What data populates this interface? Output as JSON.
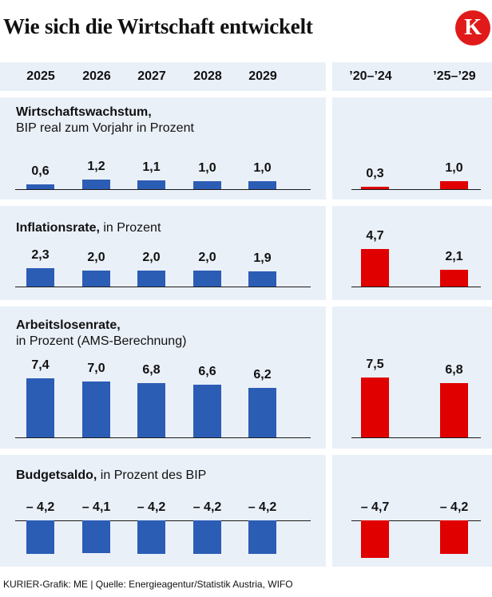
{
  "header": {
    "title": "Wie sich die Wirtschaft entwickelt",
    "logo_letter": "K"
  },
  "colors": {
    "blue": "#2c5db5",
    "red": "#e00000",
    "panel": "#eaf0f8"
  },
  "chart_data": {
    "type": "bar",
    "left_columns": [
      "2025",
      "2026",
      "2027",
      "2028",
      "2029"
    ],
    "right_columns": [
      "’20–’24",
      "’25–’29"
    ],
    "sections": [
      {
        "title_bold": "Wirtschaftswachstum,",
        "title_rest": "BIP real zum Vorjahr in Prozent",
        "left_values": [
          0.6,
          1.2,
          1.1,
          1.0,
          1.0
        ],
        "left_labels": [
          "0,6",
          "1,2",
          "1,1",
          "1,0",
          "1,0"
        ],
        "right_values": [
          0.3,
          1.0
        ],
        "right_labels": [
          "0,3",
          "1,0"
        ]
      },
      {
        "title_bold": "Inflationsrate,",
        "title_rest": "in Prozent",
        "left_values": [
          2.3,
          2.0,
          2.0,
          2.0,
          1.9
        ],
        "left_labels": [
          "2,3",
          "2,0",
          "2,0",
          "2,0",
          "1,9"
        ],
        "right_values": [
          4.7,
          2.1
        ],
        "right_labels": [
          "4,7",
          "2,1"
        ]
      },
      {
        "title_bold": "Arbeitslosenrate,",
        "title_rest": "in Prozent (AMS-Berechnung)",
        "left_values": [
          7.4,
          7.0,
          6.8,
          6.6,
          6.2
        ],
        "left_labels": [
          "7,4",
          "7,0",
          "6,8",
          "6,6",
          "6,2"
        ],
        "right_values": [
          7.5,
          6.8
        ],
        "right_labels": [
          "7,5",
          "6,8"
        ]
      },
      {
        "title_bold": "Budgetsaldo,",
        "title_rest": "in Prozent des BIP",
        "left_values": [
          -4.2,
          -4.1,
          -4.2,
          -4.2,
          -4.2
        ],
        "left_labels": [
          "– 4,2",
          "– 4,1",
          "– 4,2",
          "– 4,2",
          "– 4,2"
        ],
        "right_values": [
          -4.7,
          -4.2
        ],
        "right_labels": [
          "– 4,7",
          "– 4,2"
        ]
      }
    ]
  },
  "footer": {
    "source": "KURIER-Grafik: ME | Quelle: Energieagentur/Statistik Austria, WIFO"
  }
}
